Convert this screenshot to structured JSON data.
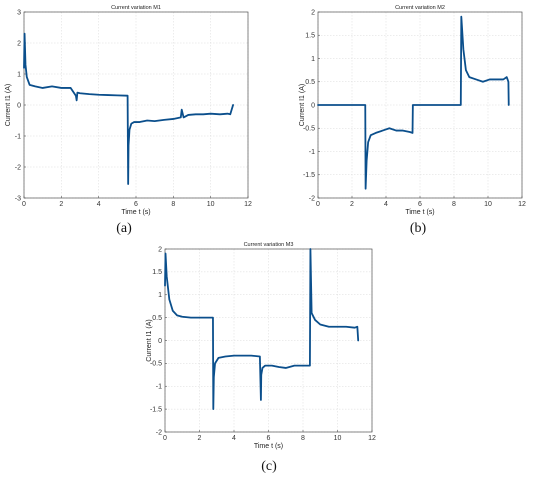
{
  "chart_data": [
    {
      "type": "line",
      "title": "Current variation M1",
      "xlabel": "Time t (s)",
      "ylabel": "Current I1 (A)",
      "caption": "(a)",
      "xlim": [
        0,
        12
      ],
      "ylim": [
        -3,
        3
      ],
      "xticks": [
        0,
        2,
        4,
        6,
        8,
        10,
        12
      ],
      "yticks": [
        -3,
        -2,
        -1,
        0,
        1,
        2,
        3
      ],
      "grid": true,
      "series": [
        {
          "color": "#0b4f8c",
          "x": [
            0.0,
            0.03,
            0.08,
            0.15,
            0.3,
            0.6,
            1.0,
            1.5,
            2.0,
            2.5,
            2.78,
            2.82,
            2.86,
            3.0,
            3.5,
            4.0,
            4.5,
            5.0,
            5.55,
            5.58,
            5.6,
            5.65,
            5.75,
            5.9,
            6.2,
            6.6,
            7.0,
            7.5,
            8.0,
            8.4,
            8.45,
            8.55,
            8.8,
            9.2,
            9.6,
            10.0,
            10.5,
            10.9,
            11.05,
            11.2
          ],
          "y": [
            1.2,
            2.3,
            1.3,
            0.9,
            0.65,
            0.6,
            0.55,
            0.6,
            0.55,
            0.55,
            0.3,
            0.15,
            0.4,
            0.38,
            0.35,
            0.33,
            0.32,
            0.31,
            0.3,
            -2.55,
            -1.3,
            -0.8,
            -0.6,
            -0.55,
            -0.55,
            -0.5,
            -0.52,
            -0.48,
            -0.45,
            -0.4,
            -0.15,
            -0.4,
            -0.32,
            -0.3,
            -0.3,
            -0.28,
            -0.3,
            -0.28,
            -0.3,
            0.0
          ]
        }
      ]
    },
    {
      "type": "line",
      "title": "Current variation M2",
      "xlabel": "Time t (s)",
      "ylabel": "Current I1 (A)",
      "caption": "(b)",
      "xlim": [
        0,
        12
      ],
      "ylim": [
        -2,
        2
      ],
      "xticks": [
        0,
        2,
        4,
        6,
        8,
        10,
        12
      ],
      "yticks": [
        -2,
        -1.5,
        -1,
        -0.5,
        0,
        0.5,
        1,
        1.5,
        2
      ],
      "grid": true,
      "series": [
        {
          "color": "#0b4f8c",
          "x": [
            0.0,
            2.78,
            2.8,
            2.86,
            2.95,
            3.1,
            3.4,
            3.8,
            4.2,
            4.6,
            5.0,
            5.4,
            5.56,
            5.58,
            6.0,
            7.0,
            8.4,
            8.43,
            8.55,
            8.7,
            8.9,
            9.3,
            9.7,
            10.1,
            10.5,
            10.9,
            11.1,
            11.2,
            11.22
          ],
          "y": [
            0.0,
            0.0,
            -1.8,
            -1.2,
            -0.8,
            -0.65,
            -0.6,
            -0.55,
            -0.5,
            -0.55,
            -0.55,
            -0.58,
            -0.6,
            0.0,
            0.0,
            0.0,
            0.0,
            1.9,
            1.2,
            0.75,
            0.6,
            0.55,
            0.5,
            0.55,
            0.55,
            0.55,
            0.6,
            0.5,
            0.0
          ]
        }
      ]
    },
    {
      "type": "line",
      "title": "Current variation M3",
      "xlabel": "Time t (s)",
      "ylabel": "Current I1 (A)",
      "caption": "(c)",
      "xlim": [
        0,
        12
      ],
      "ylim": [
        -2,
        2
      ],
      "xticks": [
        0,
        2,
        4,
        6,
        8,
        10,
        12
      ],
      "yticks": [
        -2,
        -1.5,
        -1,
        -0.5,
        0,
        0.5,
        1,
        1.5,
        2
      ],
      "grid": true,
      "series": [
        {
          "color": "#0b4f8c",
          "x": [
            0.0,
            0.03,
            0.1,
            0.25,
            0.45,
            0.7,
            1.0,
            1.5,
            2.0,
            2.5,
            2.78,
            2.8,
            2.83,
            2.9,
            3.1,
            3.5,
            4.0,
            4.5,
            5.0,
            5.5,
            5.56,
            5.58,
            5.65,
            5.8,
            6.2,
            6.6,
            7.0,
            7.5,
            8.0,
            8.4,
            8.43,
            8.5,
            8.7,
            9.0,
            9.5,
            10.0,
            10.5,
            11.0,
            11.15,
            11.2
          ],
          "y": [
            1.2,
            1.9,
            1.4,
            0.9,
            0.65,
            0.55,
            0.52,
            0.5,
            0.5,
            0.5,
            0.5,
            -1.5,
            -0.8,
            -0.5,
            -0.38,
            -0.35,
            -0.33,
            -0.33,
            -0.33,
            -0.35,
            -1.3,
            -0.75,
            -0.6,
            -0.55,
            -0.55,
            -0.58,
            -0.6,
            -0.55,
            -0.55,
            -0.55,
            2.0,
            0.6,
            0.45,
            0.35,
            0.3,
            0.3,
            0.3,
            0.28,
            0.3,
            0.0
          ]
        }
      ]
    }
  ]
}
